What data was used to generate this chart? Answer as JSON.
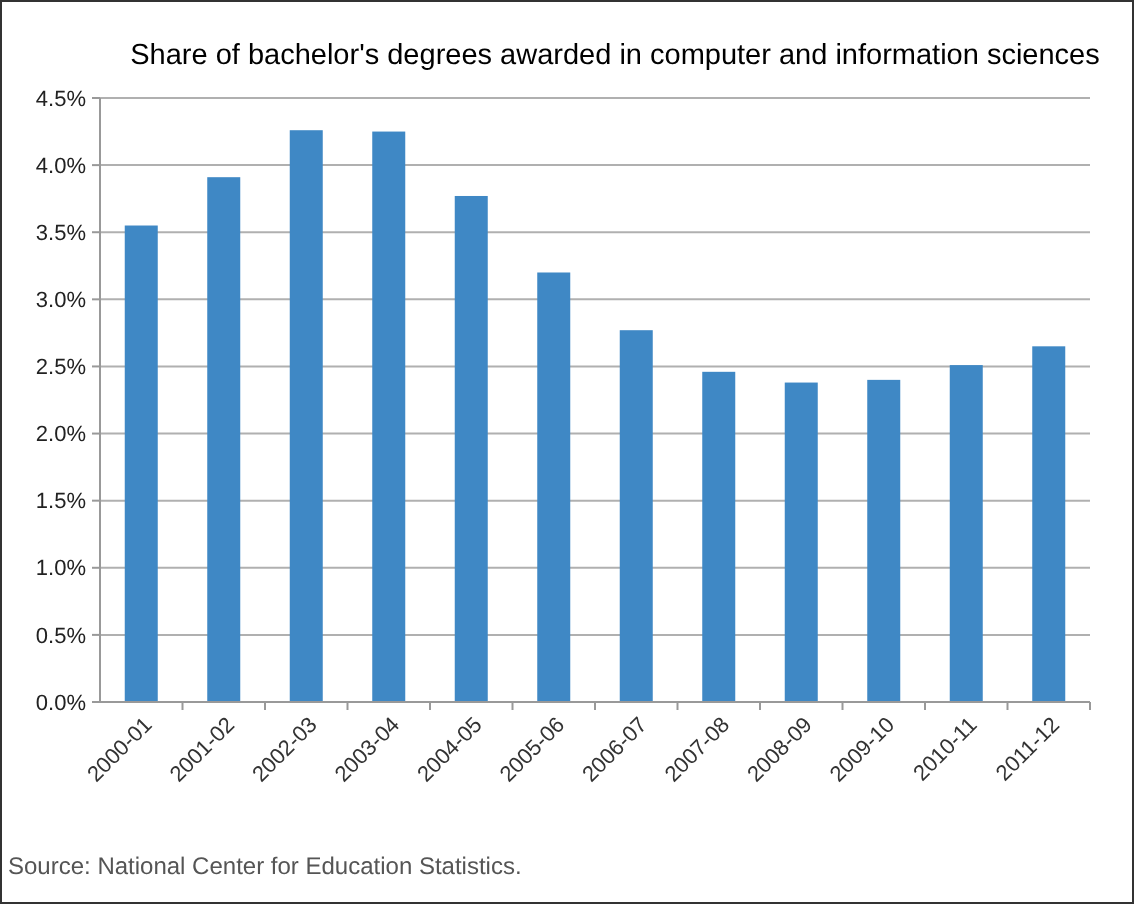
{
  "chart_data": {
    "type": "bar",
    "title": "Share of bachelor's degrees awarded in computer and information sciences",
    "categories": [
      "2000-01",
      "2001-02",
      "2002-03",
      "2003-04",
      "2004-05",
      "2005-06",
      "2006-07",
      "2007-08",
      "2008-09",
      "2009-10",
      "2010-11",
      "2011-12"
    ],
    "values": [
      3.55,
      3.91,
      4.26,
      4.25,
      3.77,
      3.2,
      2.77,
      2.46,
      2.38,
      2.4,
      2.51,
      2.65
    ],
    "color": "#3f88c5",
    "ylim": [
      0,
      4.5
    ],
    "yticks": [
      {
        "value": 0,
        "label": "0.0%"
      },
      {
        "value": 0.5,
        "label": "0.5%"
      },
      {
        "value": 1,
        "label": "1.0%"
      },
      {
        "value": 1.5,
        "label": "1.5%"
      },
      {
        "value": 2,
        "label": "2.0%"
      },
      {
        "value": 2.5,
        "label": "2.5%"
      },
      {
        "value": 3,
        "label": "3.0%"
      },
      {
        "value": 3.5,
        "label": "3.5%"
      },
      {
        "value": 4,
        "label": "4.0%"
      },
      {
        "value": 4.5,
        "label": "4.5%"
      }
    ],
    "grid": "y",
    "annotations": [
      "Source: National Center for Education Statistics."
    ]
  }
}
